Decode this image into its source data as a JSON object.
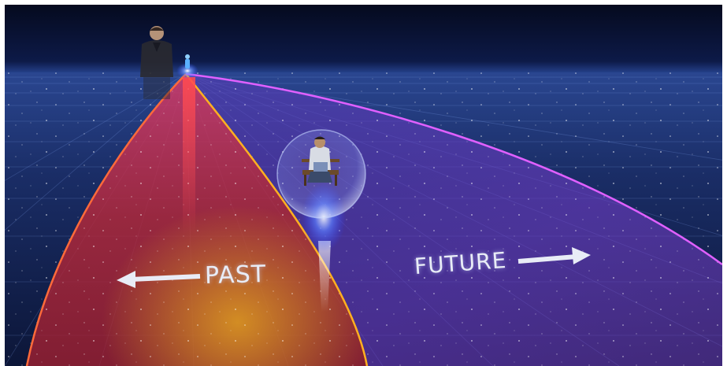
{
  "scene": {
    "labels": {
      "past": "PAST",
      "future": "FUTURE"
    },
    "icons": {
      "past_arrow": "arrow-left-icon",
      "future_arrow": "arrow-right-icon"
    },
    "colors": {
      "sky": "#0a1230",
      "horizon_glow": "#3a5fb0",
      "floor": "#1c3370",
      "past_cone": "#c42a45",
      "past_edge": "#ff6a3a",
      "future_region": "#6a3cc0",
      "future_edge": "#e060ff",
      "divider": "#ffb020",
      "bubble": "#8aa8ff",
      "text": "#e8ecf6"
    }
  }
}
